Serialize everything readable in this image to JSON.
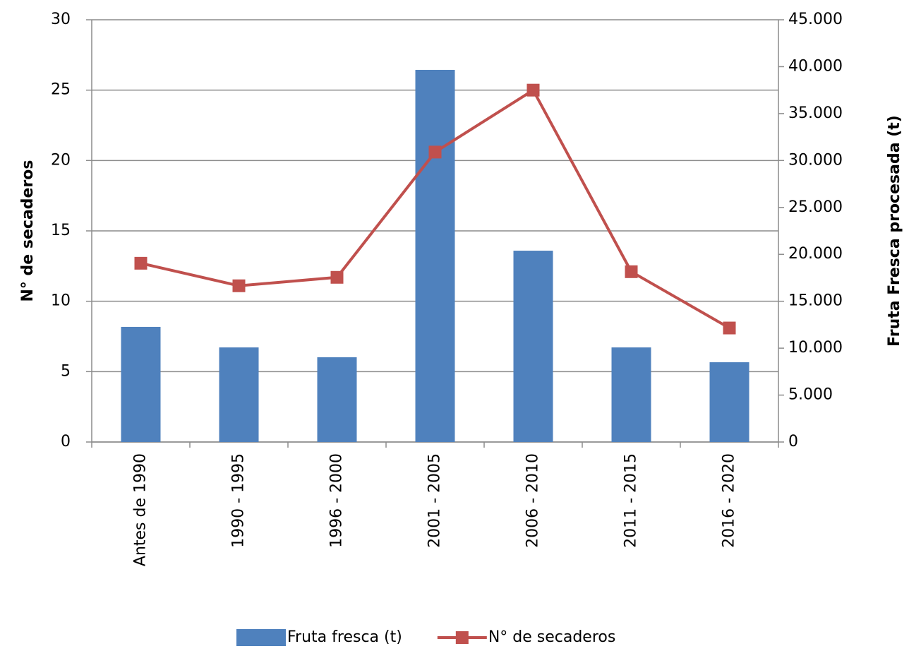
{
  "chart_data": {
    "type": "bar-line",
    "categories": [
      "Antes de 1990",
      "1990 - 1995",
      "1996 - 2000",
      "2001 - 2005",
      "2006 - 2010",
      "2011 - 2015",
      "2016 - 2020"
    ],
    "ylabel": "N° de secaderos",
    "y2label": "Fruta Fresca procesada (t)",
    "ylim": [
      0,
      30
    ],
    "yticks": [
      0,
      5,
      10,
      15,
      20,
      25,
      30
    ],
    "y2lim": [
      0,
      45000
    ],
    "y2ticks": [
      0,
      {
        "value": 5000,
        "label": "5.000"
      },
      {
        "value": 10000,
        "label": "10.000"
      },
      {
        "value": 15000,
        "label": "15.000"
      },
      {
        "value": 20000,
        "label": "20.000"
      },
      {
        "value": 25000,
        "label": "25.000"
      },
      {
        "value": 30000,
        "label": "30.000"
      },
      {
        "value": 35000,
        "label": "35.000"
      },
      {
        "value": 40000,
        "label": "40.000"
      },
      {
        "value": 45000,
        "label": "45.000"
      }
    ],
    "grid": true,
    "legend": "bottom",
    "series": [
      {
        "name": "Fruta fresca (t)",
        "type": "bar",
        "axis": "y2",
        "color": "#4f81bd",
        "values": [
          12270,
          10080,
          9030,
          39660,
          20390,
          10080,
          8500
        ]
      },
      {
        "name": "N° de secaderos",
        "type": "line",
        "axis": "y",
        "color": "#c0504d",
        "values": [
          12.7,
          11.1,
          11.7,
          20.6,
          25,
          12.1,
          8.1
        ]
      }
    ]
  }
}
